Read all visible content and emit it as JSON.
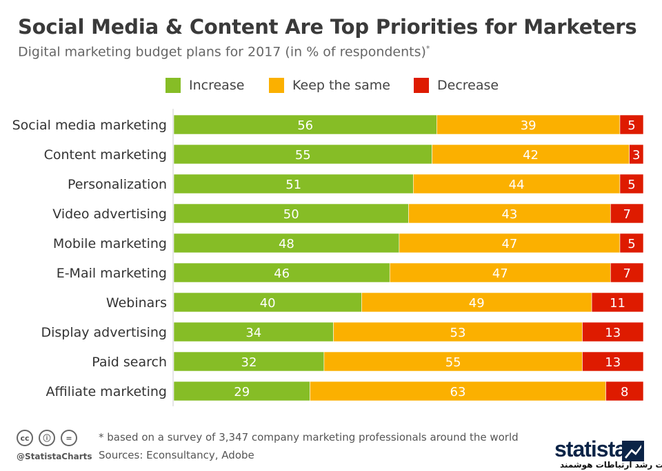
{
  "header": {
    "title": "Social Media & Content Are Top Priorities for Marketers",
    "subtitle": "Digital marketing budget plans for 2017 (in % of respondents)",
    "subtitle_mark": "*"
  },
  "legend": {
    "items": [
      {
        "label": "Increase",
        "color": "#86bd26"
      },
      {
        "label": "Keep the same",
        "color": "#fbb000"
      },
      {
        "label": "Decrease",
        "color": "#de1b00"
      }
    ]
  },
  "chart_data": {
    "type": "bar",
    "orientation": "horizontal",
    "stacked": true,
    "title": "Social Media & Content Are Top Priorities for Marketers",
    "xlabel": "",
    "ylabel": "",
    "xlim": [
      0,
      100
    ],
    "grid": false,
    "legend_position": "top",
    "categories": [
      "Social media marketing",
      "Content marketing",
      "Personalization",
      "Video advertising",
      "Mobile marketing",
      "E-Mail marketing",
      "Webinars",
      "Display advertising",
      "Paid search",
      "Affiliate marketing"
    ],
    "series": [
      {
        "name": "Increase",
        "color": "#86bd26",
        "values": [
          56,
          55,
          51,
          50,
          48,
          46,
          40,
          34,
          32,
          29
        ]
      },
      {
        "name": "Keep the same",
        "color": "#fbb000",
        "values": [
          39,
          42,
          44,
          43,
          47,
          47,
          49,
          53,
          55,
          63
        ]
      },
      {
        "name": "Decrease",
        "color": "#de1b00",
        "values": [
          5,
          3,
          5,
          7,
          5,
          7,
          11,
          13,
          13,
          8
        ]
      }
    ]
  },
  "footer": {
    "note": "* based on a survey of 3,347 company marketing professionals around the world",
    "sources": "Sources: Econsultancy, Adobe",
    "handle": "@StatistaCharts",
    "license_icons": [
      "cc-icon",
      "attribution-icon",
      "no-derivatives-icon"
    ],
    "cc_symbol": "cc",
    "by_symbol": "ⓘ",
    "nd_symbol": "=",
    "brand": "statista",
    "company": "شرکت رشد ارتباطات هوشمند"
  }
}
